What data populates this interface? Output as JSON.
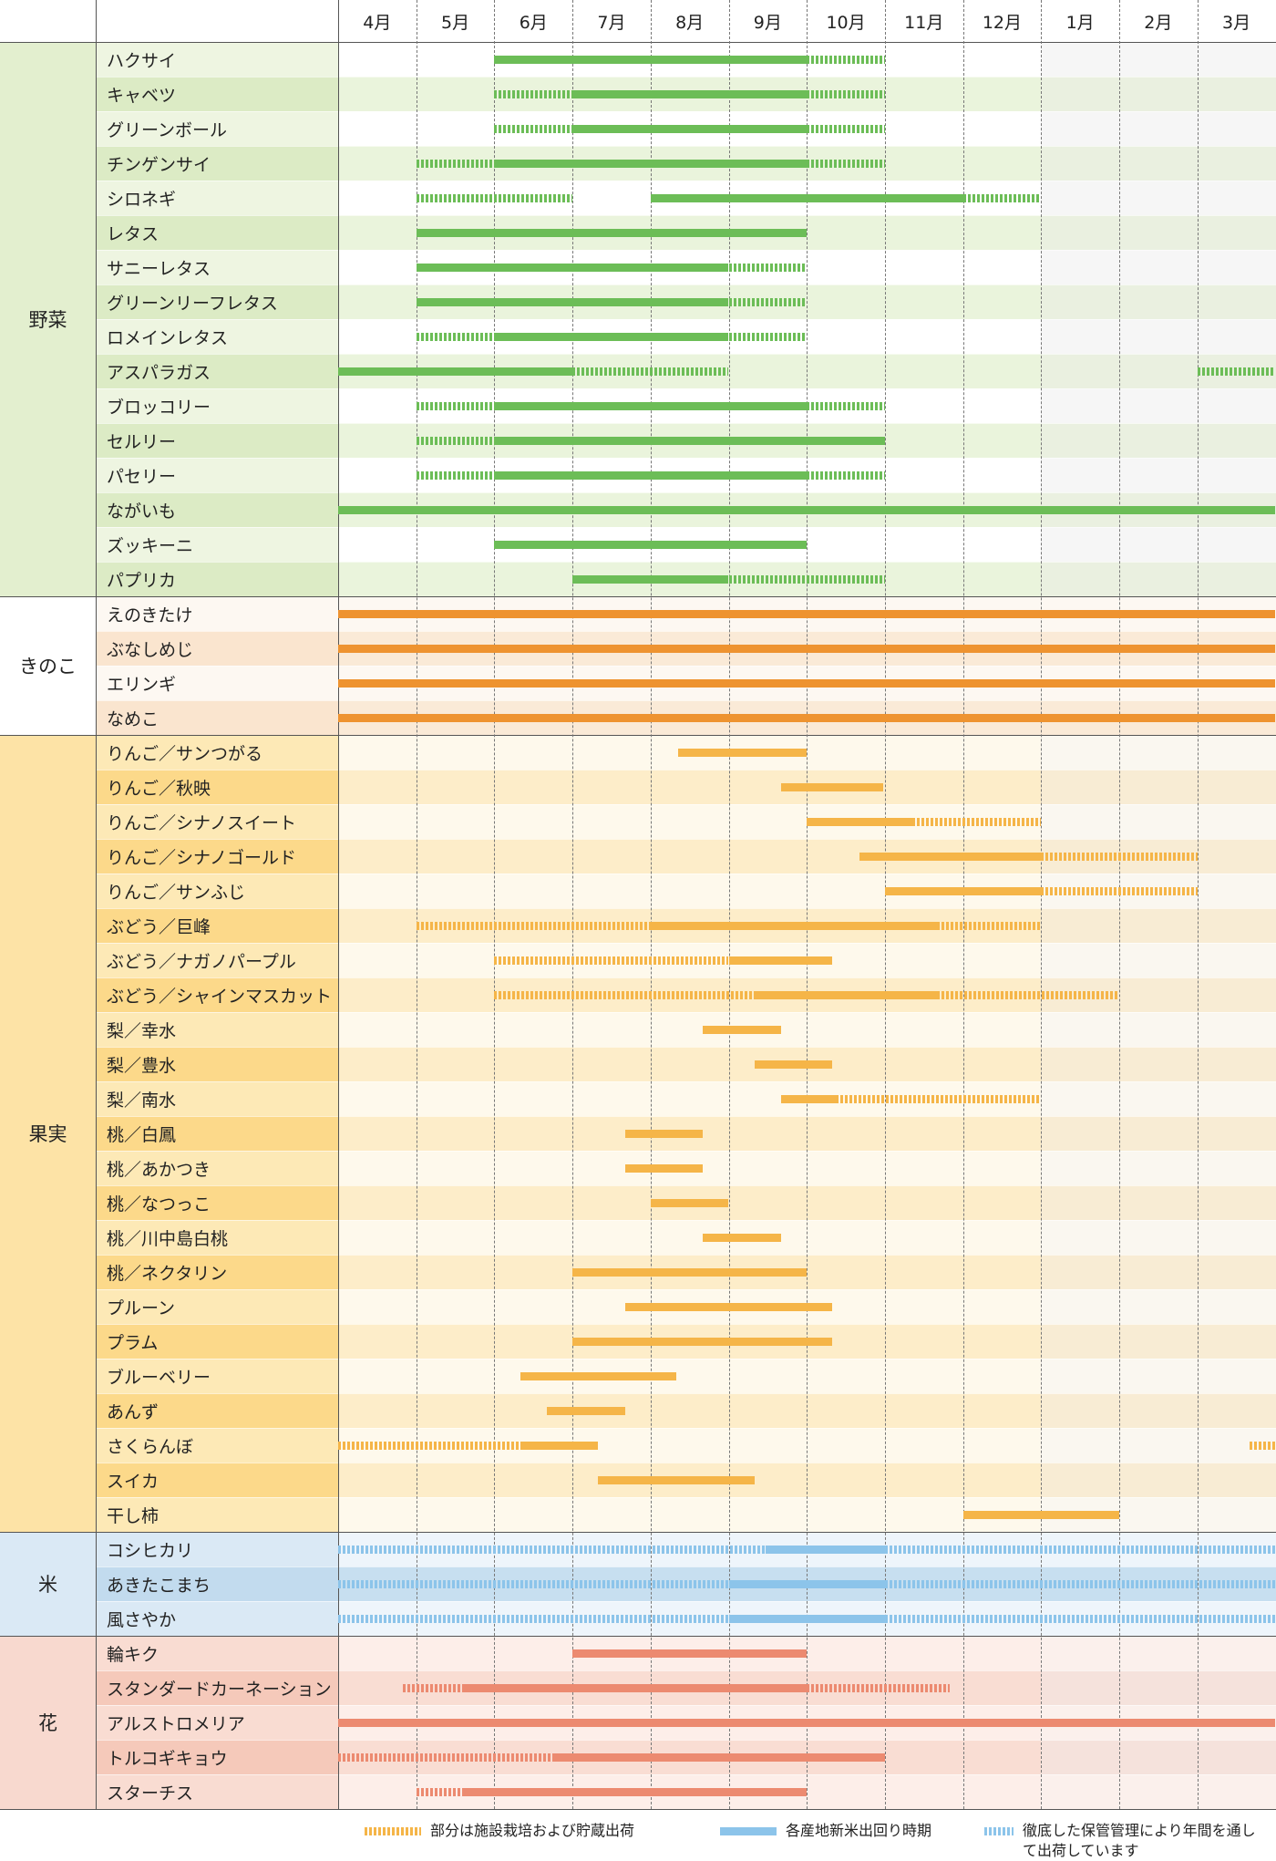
{
  "chart_data": {
    "type": "gantt",
    "months": [
      "4月",
      "5月",
      "6月",
      "7月",
      "8月",
      "9月",
      "10月",
      "11月",
      "12月",
      "1月",
      "2月",
      "3月"
    ],
    "categories": [
      {
        "name": "野菜",
        "key": "veg",
        "bg": "#e3efcf",
        "rowA": "#ffffff",
        "rowB": "#eaf4dc",
        "winterA": "#f6f6f6",
        "winterB": "#eaf0e0",
        "labA": "#eef5e1",
        "labB": "#dcebc5",
        "bar": "#6cbd57",
        "items": [
          {
            "label": "ハクサイ",
            "solid": [
              [
                3,
                7
              ]
            ],
            "dash": [
              [
                7,
                8
              ]
            ]
          },
          {
            "label": "キャベツ",
            "solid": [
              [
                4,
                7
              ]
            ],
            "dash": [
              [
                3,
                4
              ],
              [
                7,
                8
              ]
            ]
          },
          {
            "label": "グリーンボール",
            "solid": [
              [
                4,
                7
              ]
            ],
            "dash": [
              [
                3,
                4
              ],
              [
                7,
                8
              ]
            ]
          },
          {
            "label": "チンゲンサイ",
            "solid": [
              [
                3,
                7
              ]
            ],
            "dash": [
              [
                2,
                3
              ],
              [
                7,
                8
              ]
            ]
          },
          {
            "label": "シロネギ",
            "solid": [
              [
                5,
                9
              ]
            ],
            "dash": [
              [
                2,
                4
              ],
              [
                9,
                10
              ]
            ]
          },
          {
            "label": "レタス",
            "solid": [
              [
                2,
                7
              ]
            ],
            "dash": []
          },
          {
            "label": "サニーレタス",
            "solid": [
              [
                2,
                6
              ]
            ],
            "dash": [
              [
                6,
                7
              ]
            ]
          },
          {
            "label": "グリーンリーフレタス",
            "solid": [
              [
                2,
                6
              ]
            ],
            "dash": [
              [
                6,
                7
              ]
            ]
          },
          {
            "label": "ロメインレタス",
            "solid": [
              [
                3,
                6
              ]
            ],
            "dash": [
              [
                2,
                3
              ],
              [
                6,
                7
              ]
            ]
          },
          {
            "label": "アスパラガス",
            "solid": [
              [
                1,
                4
              ]
            ],
            "dash": [
              [
                4,
                6
              ],
              [
                12,
                13
              ]
            ]
          },
          {
            "label": "ブロッコリー",
            "solid": [
              [
                3,
                7
              ]
            ],
            "dash": [
              [
                2,
                3
              ],
              [
                7,
                8
              ]
            ]
          },
          {
            "label": "セルリー",
            "solid": [
              [
                3,
                8
              ]
            ],
            "dash": [
              [
                2,
                3
              ]
            ]
          },
          {
            "label": "パセリー",
            "solid": [
              [
                3,
                7
              ]
            ],
            "dash": [
              [
                2,
                3
              ],
              [
                7,
                8
              ]
            ]
          },
          {
            "label": "ながいも",
            "solid": [
              [
                1,
                13
              ]
            ],
            "dash": []
          },
          {
            "label": "ズッキーニ",
            "solid": [
              [
                3,
                7
              ]
            ],
            "dash": []
          },
          {
            "label": "パプリカ",
            "solid": [
              [
                4,
                6
              ]
            ],
            "dash": [
              [
                6,
                8
              ]
            ]
          }
        ]
      },
      {
        "name": "きのこ",
        "key": "mush",
        "bg": "#ffffff",
        "rowA": "#fdf8f2",
        "rowB": "#faead7",
        "winterA": "#fdf8f2",
        "winterB": "#faead7",
        "labA": "#fdf8f2",
        "labB": "#fae5cf",
        "bar": "#ee9330",
        "items": [
          {
            "label": "えのきたけ",
            "solid": [
              [
                1,
                13
              ]
            ],
            "dash": []
          },
          {
            "label": "ぶなしめじ",
            "solid": [
              [
                1,
                13
              ]
            ],
            "dash": []
          },
          {
            "label": "エリンギ",
            "solid": [
              [
                1,
                13
              ]
            ],
            "dash": []
          },
          {
            "label": "なめこ",
            "solid": [
              [
                1,
                13
              ]
            ],
            "dash": []
          }
        ]
      },
      {
        "name": "果実",
        "key": "fruit",
        "bg": "#fde3a6",
        "rowA": "#fef9ec",
        "rowB": "#fdedc9",
        "winterA": "#faf7f0",
        "winterB": "#f8ecd4",
        "labA": "#fde9b6",
        "labB": "#fcd98a",
        "bar": "#f5b548",
        "items": [
          {
            "label": "りんご／サンつがる",
            "solid": [
              [
                5.35,
                7
              ]
            ],
            "dash": []
          },
          {
            "label": "りんご／秋映",
            "solid": [
              [
                6.67,
                7.98
              ]
            ],
            "dash": []
          },
          {
            "label": "りんご／シナノスイート",
            "solid": [
              [
                7,
                8.35
              ]
            ],
            "dash": [
              [
                8.35,
                10
              ]
            ]
          },
          {
            "label": "りんご／シナノゴールド",
            "solid": [
              [
                7.67,
                10
              ]
            ],
            "dash": [
              [
                10,
                12
              ]
            ]
          },
          {
            "label": "りんご／サンふじ",
            "solid": [
              [
                8,
                10
              ]
            ],
            "dash": [
              [
                10,
                12
              ]
            ]
          },
          {
            "label": "ぶどう／巨峰",
            "solid": [
              [
                5,
                8.67
              ]
            ],
            "dash": [
              [
                2,
                5
              ],
              [
                8.67,
                10
              ]
            ]
          },
          {
            "label": "ぶどう／ナガノパープル",
            "solid": [
              [
                6,
                7.33
              ]
            ],
            "dash": [
              [
                3,
                6
              ]
            ]
          },
          {
            "label": "ぶどう／シャインマスカット",
            "solid": [
              [
                6.33,
                8.67
              ]
            ],
            "dash": [
              [
                3,
                6.33
              ],
              [
                8.67,
                11
              ]
            ]
          },
          {
            "label": "梨／幸水",
            "solid": [
              [
                5.67,
                6.67
              ]
            ],
            "dash": []
          },
          {
            "label": "梨／豊水",
            "solid": [
              [
                6.33,
                7.33
              ]
            ],
            "dash": []
          },
          {
            "label": "梨／南水",
            "solid": [
              [
                6.67,
                7.37
              ]
            ],
            "dash": [
              [
                7.37,
                10
              ]
            ]
          },
          {
            "label": "桃／白鳳",
            "solid": [
              [
                4.67,
                5.67
              ]
            ],
            "dash": []
          },
          {
            "label": "桃／あかつき",
            "solid": [
              [
                4.67,
                5.67
              ]
            ],
            "dash": []
          },
          {
            "label": "桃／なつっこ",
            "solid": [
              [
                5,
                6
              ]
            ],
            "dash": []
          },
          {
            "label": "桃／川中島白桃",
            "solid": [
              [
                5.67,
                6.67
              ]
            ],
            "dash": []
          },
          {
            "label": "桃／ネクタリン",
            "solid": [
              [
                4,
                7
              ]
            ],
            "dash": []
          },
          {
            "label": "プルーン",
            "solid": [
              [
                4.67,
                7.33
              ]
            ],
            "dash": []
          },
          {
            "label": "プラム",
            "solid": [
              [
                4,
                7.33
              ]
            ],
            "dash": []
          },
          {
            "label": "ブルーベリー",
            "solid": [
              [
                3.33,
                5.33
              ]
            ],
            "dash": []
          },
          {
            "label": "あんず",
            "solid": [
              [
                3.67,
                4.67
              ]
            ],
            "dash": []
          },
          {
            "label": "さくらんぼ",
            "solid": [
              [
                3.33,
                4.33
              ]
            ],
            "dash": [
              [
                1,
                3.33
              ],
              [
                12.67,
                13
              ]
            ]
          },
          {
            "label": "スイカ",
            "solid": [
              [
                4.33,
                6.33
              ]
            ],
            "dash": []
          },
          {
            "label": "干し柿",
            "solid": [
              [
                9,
                11
              ]
            ],
            "dash": []
          }
        ]
      },
      {
        "name": "米",
        "key": "rice",
        "bg": "#dae9f5",
        "rowA": "#eef5fb",
        "rowB": "#c7dff0",
        "winterA": "#eef5fb",
        "winterB": "#c7dff0",
        "labA": "#dae9f5",
        "labB": "#c2dbee",
        "bar": "#8cc4ea",
        "items": [
          {
            "label": "コシヒカリ",
            "solid": [
              [
                6.47,
                8
              ]
            ],
            "dash": [
              [
                1,
                6.47
              ],
              [
                8,
                13
              ]
            ]
          },
          {
            "label": "あきたこまち",
            "solid": [
              [
                6,
                8
              ]
            ],
            "dash": [
              [
                1,
                6
              ],
              [
                8,
                13
              ]
            ]
          },
          {
            "label": "風さやか",
            "solid": [
              [
                6,
                8
              ]
            ],
            "dash": [
              [
                1,
                6
              ],
              [
                8,
                13
              ]
            ]
          }
        ]
      },
      {
        "name": "花",
        "key": "flower",
        "bg": "#f8d9cf",
        "rowA": "#fdeee9",
        "rowB": "#f9ddd3",
        "winterA": "#fbf0ec",
        "winterB": "#f5e2dc",
        "labA": "#f9dcd2",
        "labB": "#f5c9ba",
        "bar": "#ec8a70",
        "items": [
          {
            "label": "輪キク",
            "solid": [
              [
                4,
                7
              ]
            ],
            "dash": []
          },
          {
            "label": "スタンダードカーネーション",
            "solid": [
              [
                2.6,
                7
              ]
            ],
            "dash": [
              [
                1.83,
                2.6
              ],
              [
                7,
                8.83
              ]
            ]
          },
          {
            "label": "アルストロメリア",
            "solid": [
              [
                1,
                13
              ]
            ],
            "dash": []
          },
          {
            "label": "トルコギキョウ",
            "solid": [
              [
                3.75,
                8
              ]
            ],
            "dash": [
              [
                1,
                3.75
              ]
            ]
          },
          {
            "label": "スターチス",
            "solid": [
              [
                2.6,
                7
              ]
            ],
            "dash": [
              [
                2,
                2.6
              ]
            ]
          }
        ]
      }
    ],
    "legend": [
      {
        "label": "部分は施設栽培および貯蔵出荷",
        "color": "#f5b548",
        "style": "dash"
      },
      {
        "label": "各産地新米出回り時期",
        "color": "#8cc4ea",
        "style": "solid"
      },
      {
        "label": "徹底した保管管理により年間を通して出荷しています",
        "color": "#8cc4ea",
        "style": "dash"
      }
    ]
  }
}
